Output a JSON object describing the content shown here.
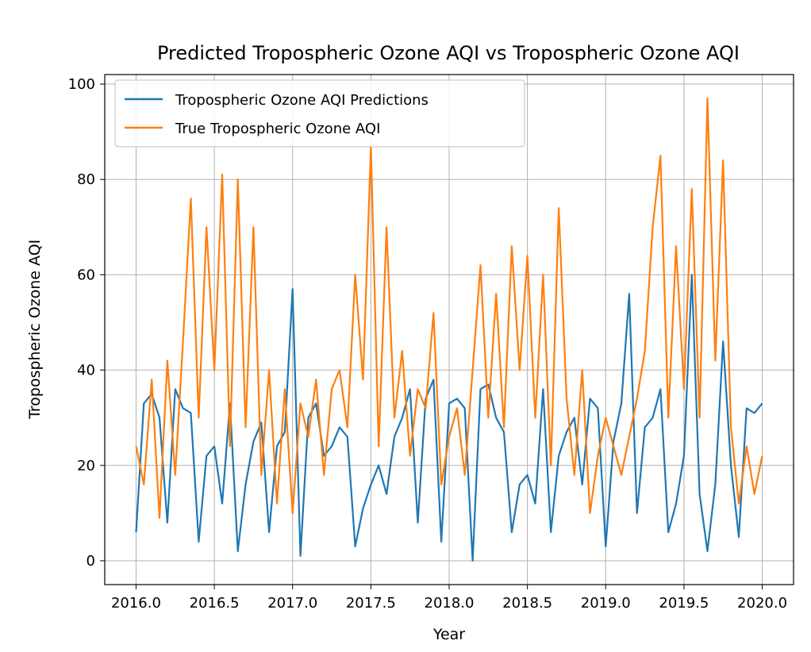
{
  "chart_data": {
    "type": "line",
    "title": "Predicted Tropospheric Ozone AQI vs Tropospheric Ozone AQI",
    "xlabel": "Year",
    "ylabel": "Tropospheric Ozone AQI",
    "xlim": [
      2015.8,
      2020.2
    ],
    "ylim": [
      -5,
      102
    ],
    "xticks": [
      2016.0,
      2016.5,
      2017.0,
      2017.5,
      2018.0,
      2018.5,
      2019.0,
      2019.5,
      2020.0
    ],
    "xtick_labels": [
      "2016.0",
      "2016.5",
      "2017.0",
      "2017.5",
      "2018.0",
      "2018.5",
      "2019.0",
      "2019.5",
      "2020.0"
    ],
    "yticks": [
      0,
      20,
      40,
      60,
      80,
      100
    ],
    "ytick_labels": [
      "0",
      "20",
      "40",
      "60",
      "80",
      "100"
    ],
    "grid": true,
    "legend_position": "upper-left",
    "series": [
      {
        "name": "Tropospheric Ozone AQI Predictions",
        "color": "#1f77b4",
        "x": [
          2016.0,
          2016.05,
          2016.1,
          2016.15,
          2016.2,
          2016.25,
          2016.3,
          2016.35,
          2016.4,
          2016.45,
          2016.5,
          2016.55,
          2016.6,
          2016.65,
          2016.7,
          2016.75,
          2016.8,
          2016.85,
          2016.9,
          2016.95,
          2017.0,
          2017.05,
          2017.1,
          2017.15,
          2017.2,
          2017.25,
          2017.3,
          2017.35,
          2017.4,
          2017.45,
          2017.5,
          2017.55,
          2017.6,
          2017.65,
          2017.7,
          2017.75,
          2017.8,
          2017.85,
          2017.9,
          2017.95,
          2018.0,
          2018.05,
          2018.1,
          2018.15,
          2018.2,
          2018.25,
          2018.3,
          2018.35,
          2018.4,
          2018.45,
          2018.5,
          2018.55,
          2018.6,
          2018.65,
          2018.7,
          2018.75,
          2018.8,
          2018.85,
          2018.9,
          2018.95,
          2019.0,
          2019.05,
          2019.1,
          2019.15,
          2019.2,
          2019.25,
          2019.3,
          2019.35,
          2019.4,
          2019.45,
          2019.5,
          2019.55,
          2019.6,
          2019.65,
          2019.7,
          2019.75,
          2019.8,
          2019.85,
          2019.9,
          2019.95,
          2020.0
        ],
        "values": [
          6,
          33,
          35,
          30,
          8,
          36,
          32,
          31,
          4,
          22,
          24,
          12,
          33,
          2,
          16,
          25,
          29,
          6,
          24,
          27,
          57,
          1,
          30,
          33,
          22,
          24,
          28,
          26,
          3,
          11,
          16,
          20,
          14,
          26,
          30,
          36,
          8,
          34,
          38,
          4,
          33,
          34,
          32,
          0,
          36,
          37,
          30,
          27,
          6,
          16,
          18,
          12,
          36,
          6,
          22,
          27,
          30,
          16,
          34,
          32,
          3,
          25,
          33,
          56,
          10,
          28,
          30,
          36,
          6,
          12,
          22,
          60,
          14,
          2,
          16,
          46,
          20,
          5,
          32,
          31,
          33
        ]
      },
      {
        "name": "True Tropospheric Ozone AQI",
        "color": "#ff7f0e",
        "x": [
          2016.0,
          2016.05,
          2016.1,
          2016.15,
          2016.2,
          2016.25,
          2016.3,
          2016.35,
          2016.4,
          2016.45,
          2016.5,
          2016.55,
          2016.6,
          2016.65,
          2016.7,
          2016.75,
          2016.8,
          2016.85,
          2016.9,
          2016.95,
          2017.0,
          2017.05,
          2017.1,
          2017.15,
          2017.2,
          2017.25,
          2017.3,
          2017.35,
          2017.4,
          2017.45,
          2017.5,
          2017.55,
          2017.6,
          2017.65,
          2017.7,
          2017.75,
          2017.8,
          2017.85,
          2017.9,
          2017.95,
          2018.0,
          2018.05,
          2018.1,
          2018.15,
          2018.2,
          2018.25,
          2018.3,
          2018.35,
          2018.4,
          2018.45,
          2018.5,
          2018.55,
          2018.6,
          2018.65,
          2018.7,
          2018.75,
          2018.8,
          2018.85,
          2018.9,
          2018.95,
          2019.0,
          2019.05,
          2019.1,
          2019.15,
          2019.2,
          2019.25,
          2019.3,
          2019.35,
          2019.4,
          2019.45,
          2019.5,
          2019.55,
          2019.6,
          2019.65,
          2019.7,
          2019.75,
          2019.8,
          2019.85,
          2019.9,
          2019.95,
          2020.0
        ],
        "values": [
          24,
          16,
          38,
          9,
          42,
          18,
          46,
          76,
          30,
          70,
          40,
          81,
          24,
          80,
          28,
          70,
          18,
          40,
          12,
          36,
          10,
          33,
          26,
          38,
          18,
          36,
          40,
          28,
          60,
          38,
          87,
          24,
          70,
          30,
          44,
          22,
          36,
          32,
          52,
          16,
          26,
          32,
          18,
          40,
          62,
          30,
          56,
          28,
          66,
          40,
          64,
          30,
          60,
          20,
          74,
          34,
          18,
          40,
          10,
          22,
          30,
          24,
          18,
          26,
          34,
          44,
          70,
          85,
          30,
          66,
          36,
          78,
          30,
          97,
          42,
          84,
          28,
          12,
          24,
          14,
          22
        ]
      }
    ]
  }
}
